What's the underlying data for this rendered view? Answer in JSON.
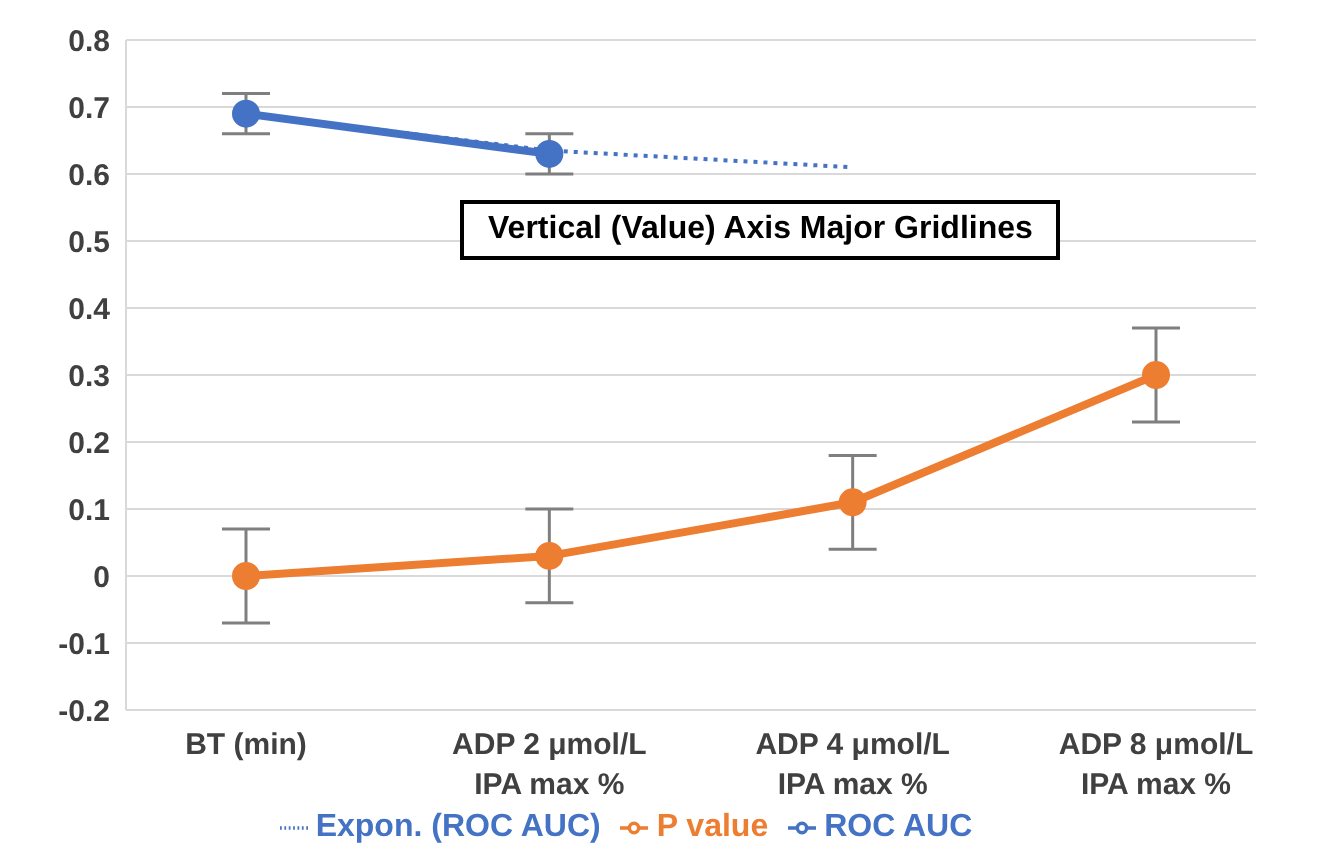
{
  "chart_data": {
    "type": "line",
    "categories": [
      "BT (min)",
      "ADP 2 μmol/L\nIPA max %",
      "ADP 4 μmol/L\nIPA max %",
      "ADP 8 μmol/L\nIPA max %"
    ],
    "series": [
      {
        "name": "ROC AUC",
        "color": "#4472c4",
        "values": [
          0.69,
          0.63,
          null,
          null
        ],
        "errors": [
          0.03,
          0.03,
          null,
          null
        ]
      },
      {
        "name": "P value",
        "color": "#ed7d31",
        "values": [
          0.0,
          0.03,
          0.11,
          0.3
        ],
        "errors": [
          0.07,
          0.07,
          0.07,
          0.07
        ]
      },
      {
        "name": "Expon. (ROC AUC)",
        "color": "#4472c4",
        "values": [
          0.69,
          0.635,
          0.61,
          null
        ],
        "line_style": "dotted",
        "marker": "none"
      }
    ],
    "ylim": [
      -0.2,
      0.8
    ],
    "yticks": [
      -0.2,
      -0.1,
      0,
      0.1,
      0.2,
      0.3,
      0.4,
      0.5,
      0.6,
      0.7,
      0.8
    ],
    "grid": "y",
    "legend": "bottom",
    "marker": "circle",
    "line_style": "solid",
    "annotations": [
      "Vertical (Value) Axis Major Gridlines"
    ]
  }
}
